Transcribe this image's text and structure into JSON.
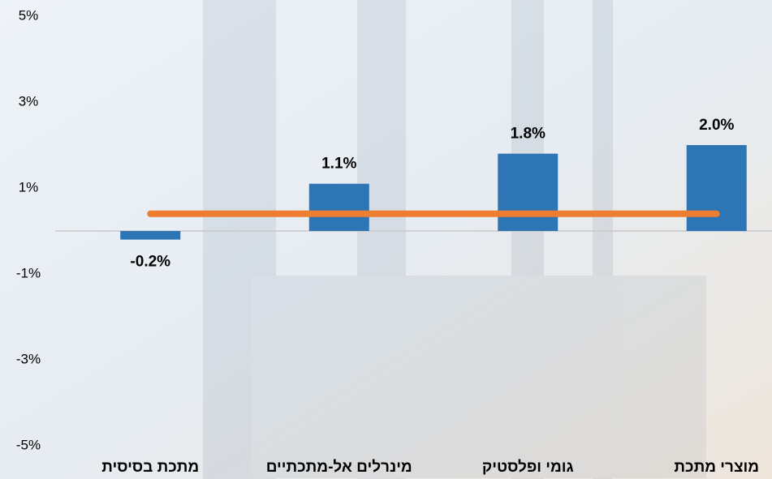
{
  "chart_data": {
    "type": "bar",
    "categories": [
      "מתכת בסיסית",
      "מינרלים אל-מתכתיים",
      "גומי ופלסטיק",
      "מוצרי מתכת"
    ],
    "series": [
      {
        "values": [
          -0.2,
          1.1,
          1.8,
          2.0
        ],
        "value_labels": [
          "-0.2%",
          "1.1%",
          "1.8%",
          "2.0%"
        ],
        "color": "#2e75b6"
      },
      {
        "type": "line",
        "values": [
          0.4,
          0.4,
          0.4,
          0.4
        ],
        "color": "#ed7d31"
      }
    ],
    "ylim": [
      -5,
      5
    ],
    "yticks": [
      {
        "value": 5,
        "label": "5%"
      },
      {
        "value": 3,
        "label": "3%"
      },
      {
        "value": 1,
        "label": "1%"
      },
      {
        "value": -1,
        "label": "-1%"
      },
      {
        "value": -3,
        "label": "-3%"
      },
      {
        "value": -5,
        "label": "-5%"
      }
    ]
  }
}
